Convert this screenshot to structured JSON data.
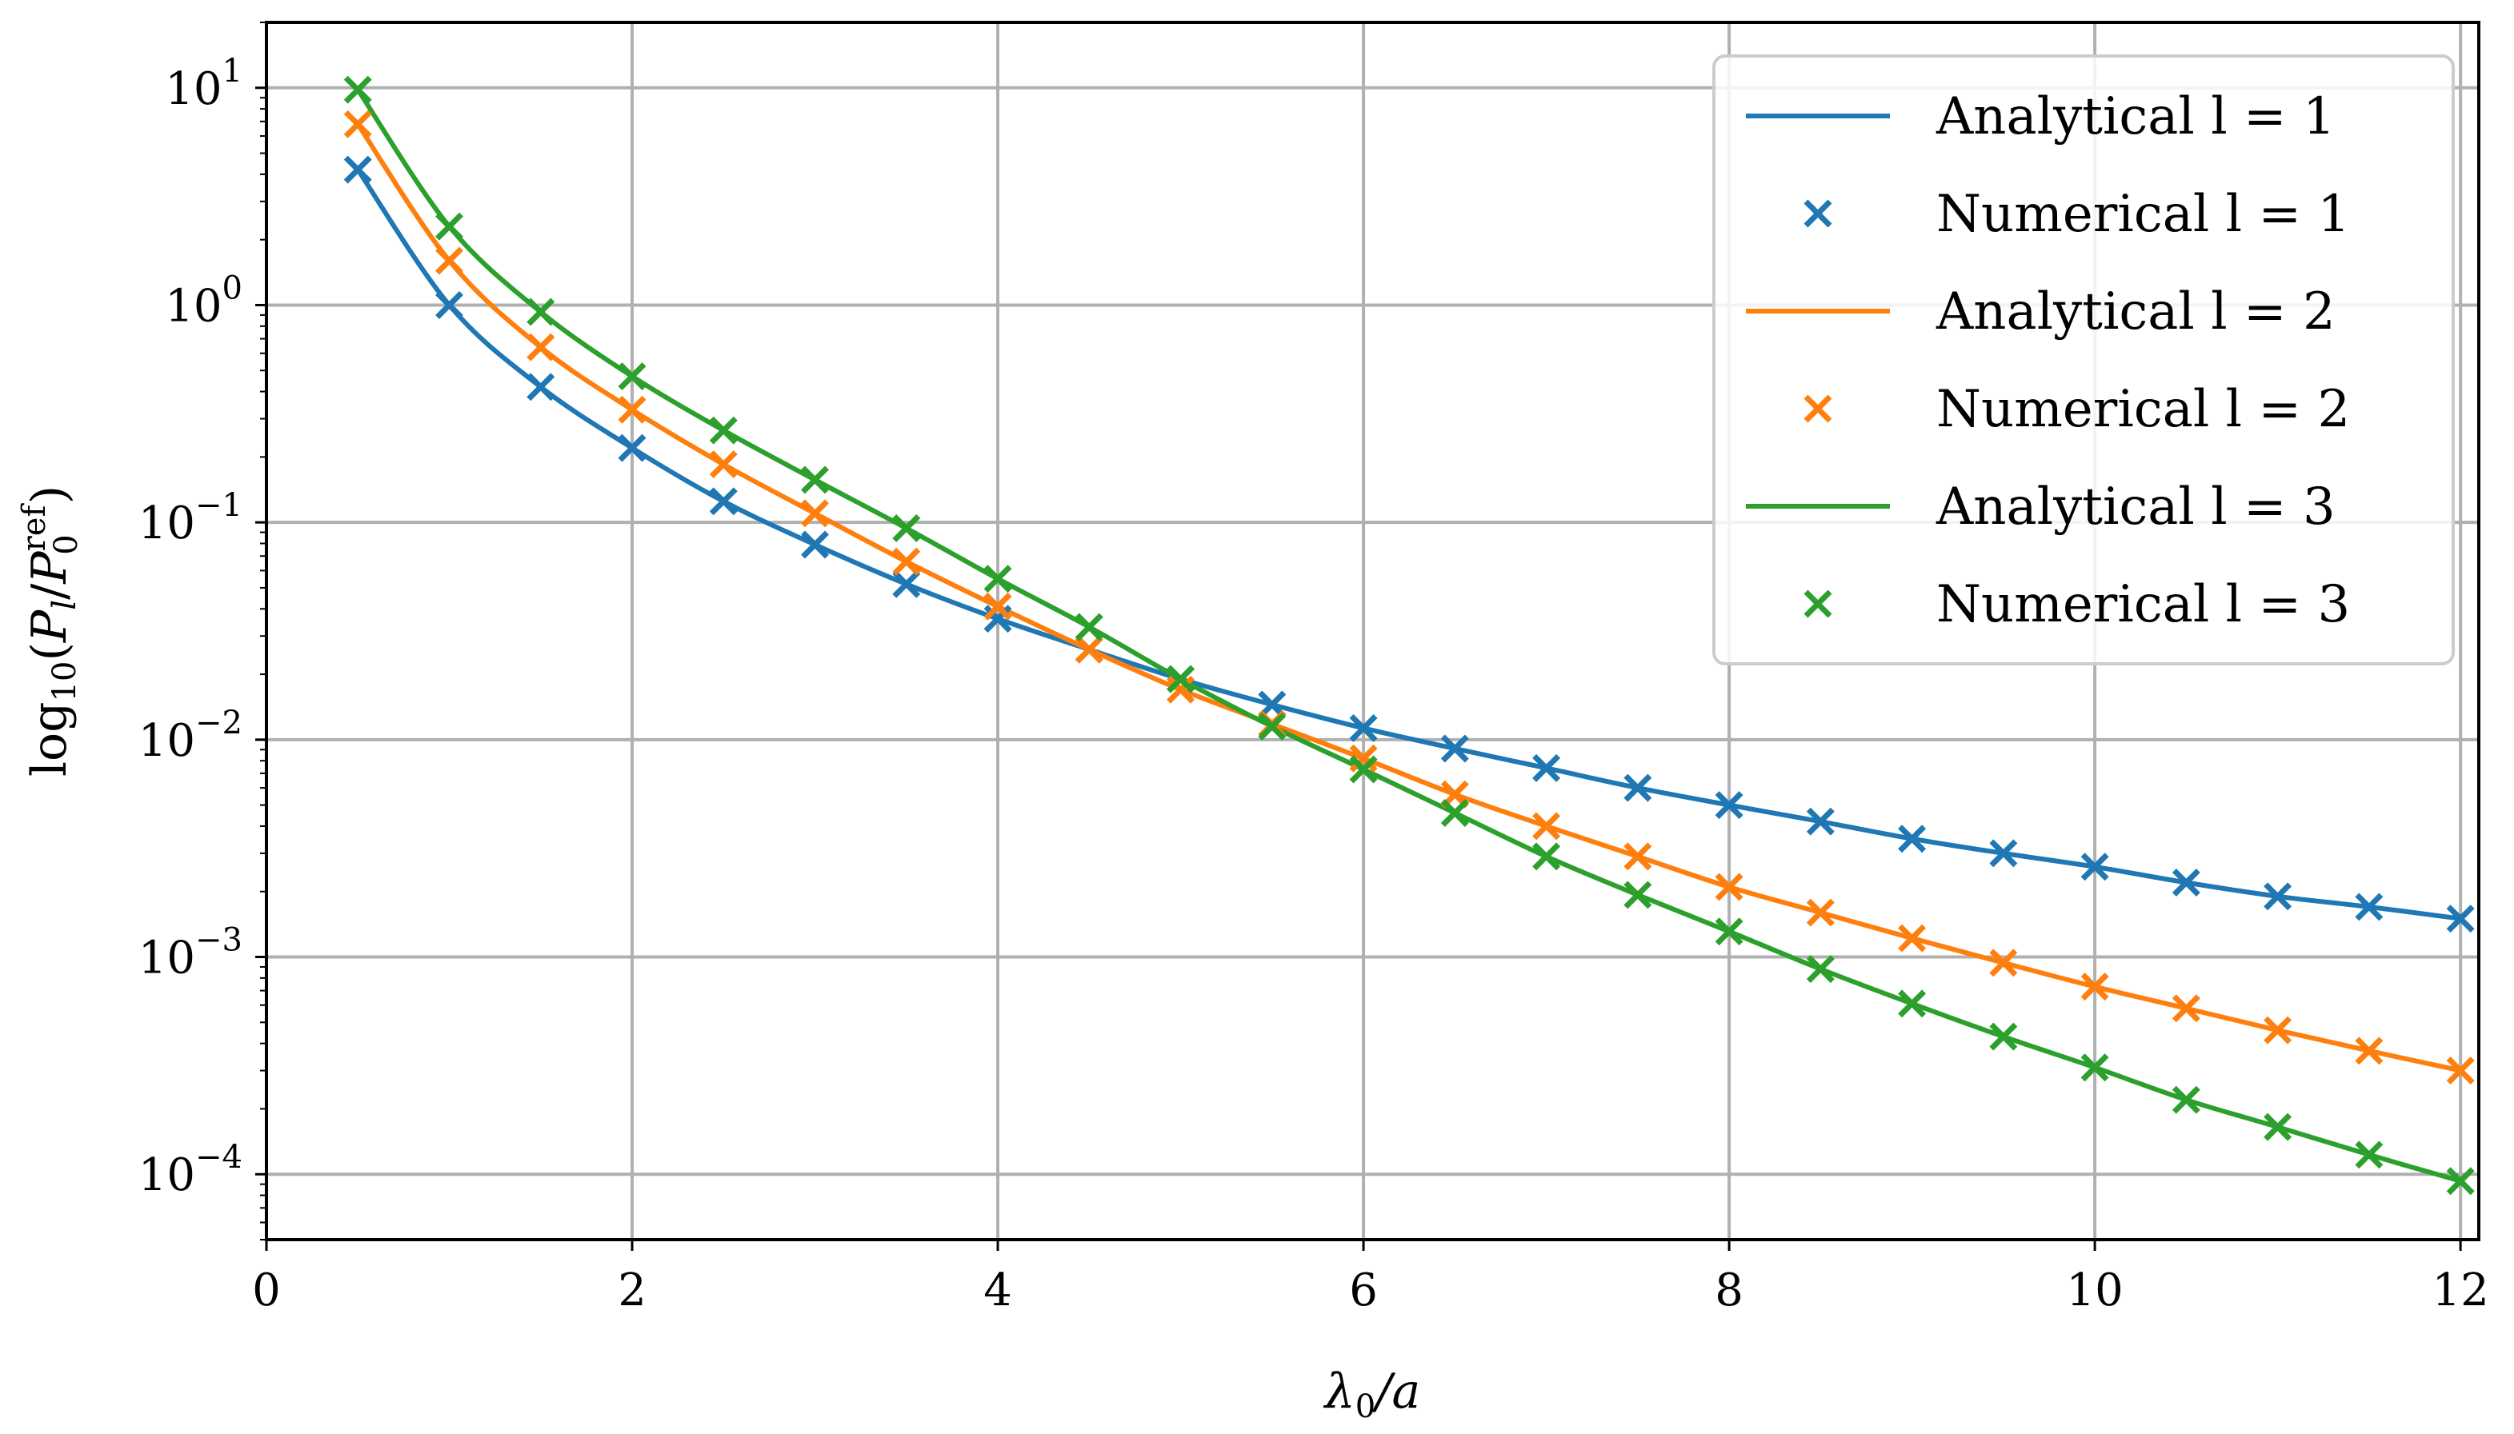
{
  "chart_data": {
    "type": "line",
    "xlabel": "λ0/a",
    "xlabel_main": "λ",
    "xlabel_sub": "0",
    "xlabel_rest": "/a",
    "ylabel": "log10(Pl/P0ref)",
    "ylabel_parts": {
      "log": "log",
      "log_sub": "10",
      "open": "(",
      "P1": "P",
      "P1_sub": "l",
      "slash": "/",
      "P2": "P",
      "P2_sub": "0",
      "P2_sup": "ref",
      "close": ")"
    },
    "xlim": [
      0,
      12.1
    ],
    "ylim": [
      5e-05,
      20
    ],
    "y_scale": "log",
    "grid": true,
    "legend_position": "top-right",
    "x_ticks": [
      "0",
      "2",
      "4",
      "6",
      "8",
      "10",
      "12"
    ],
    "x_tick_values": [
      0,
      2,
      4,
      6,
      8,
      10,
      12
    ],
    "y_ticks": [
      {
        "base": "10",
        "exp": "1",
        "value": 10
      },
      {
        "base": "10",
        "exp": "0",
        "value": 1
      },
      {
        "base": "10",
        "exp": "−1",
        "value": 0.1
      },
      {
        "base": "10",
        "exp": "−2",
        "value": 0.01
      },
      {
        "base": "10",
        "exp": "−3",
        "value": 0.001
      },
      {
        "base": "10",
        "exp": "−4",
        "value": 0.0001
      }
    ],
    "x": [
      0.5,
      1.0,
      1.5,
      2.0,
      2.5,
      3.0,
      3.5,
      4.0,
      4.5,
      5.0,
      5.5,
      6.0,
      6.5,
      7.0,
      7.5,
      8.0,
      8.5,
      9.0,
      9.5,
      10.0,
      10.5,
      11.0,
      11.5,
      12.0
    ],
    "series": [
      {
        "name": "l = 1",
        "analytical_label": "Analytical l = 1",
        "numerical_label": "Numerical l = 1",
        "color": "#1f77b4",
        "values": [
          4.2,
          1.0,
          0.42,
          0.22,
          0.125,
          0.079,
          0.052,
          0.036,
          0.026,
          0.019,
          0.0145,
          0.0113,
          0.0091,
          0.0074,
          0.006,
          0.005,
          0.0042,
          0.0035,
          0.003,
          0.0026,
          0.0022,
          0.0019,
          0.0017,
          0.0015
        ]
      },
      {
        "name": "l = 2",
        "analytical_label": "Analytical l = 2",
        "numerical_label": "Numerical l = 2",
        "color": "#ff7f0e",
        "values": [
          6.8,
          1.6,
          0.64,
          0.33,
          0.185,
          0.11,
          0.066,
          0.041,
          0.026,
          0.017,
          0.0118,
          0.0082,
          0.0056,
          0.004,
          0.0029,
          0.0021,
          0.0016,
          0.00122,
          0.00094,
          0.00073,
          0.00058,
          0.00046,
          0.00037,
          0.0003
        ]
      },
      {
        "name": "l = 3",
        "analytical_label": "Analytical l = 3",
        "numerical_label": "Numerical l = 3",
        "color": "#2ca02c",
        "values": [
          9.8,
          2.3,
          0.93,
          0.47,
          0.265,
          0.157,
          0.094,
          0.055,
          0.033,
          0.019,
          0.0115,
          0.0073,
          0.0046,
          0.0029,
          0.00193,
          0.00131,
          0.00088,
          0.00061,
          0.00043,
          0.00031,
          0.00022,
          0.000165,
          0.000123,
          9.3e-05
        ]
      }
    ]
  }
}
